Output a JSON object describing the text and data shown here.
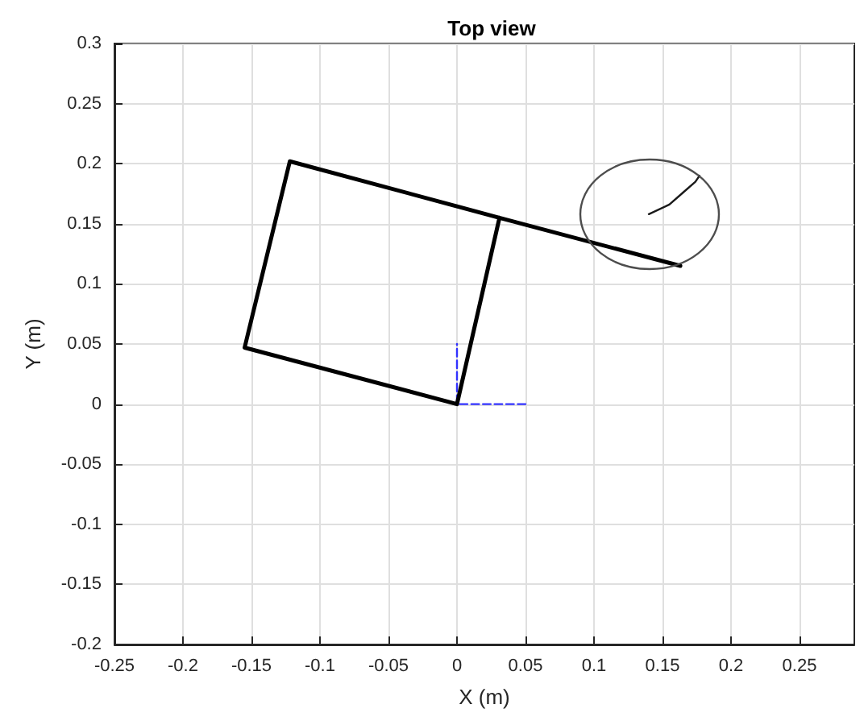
{
  "chart_data": {
    "type": "line",
    "title": "Top view",
    "xlabel": "X (m)",
    "ylabel": "Y (m)",
    "xlim": [
      -0.25,
      0.29
    ],
    "xticks": [
      -0.25,
      -0.2,
      -0.15,
      -0.1,
      -0.05,
      0,
      0.05,
      0.1,
      0.15,
      0.2,
      0.25
    ],
    "ylim": [
      -0.2,
      0.3
    ],
    "yticks": [
      -0.2,
      -0.15,
      -0.1,
      -0.05,
      0,
      0.05,
      0.1,
      0.15,
      0.2,
      0.25,
      0.3
    ],
    "grid": true,
    "marker": "none",
    "series": [
      {
        "color": "#000000",
        "x": [
          0.163,
          0.031,
          -0.122,
          -0.155,
          0,
          0.031
        ],
        "values": [
          0.115,
          0.155,
          0.202,
          0.047,
          0,
          0.155
        ]
      },
      {
        "color": "#1a1a1a",
        "x": [
          0.14,
          0.155,
          0.165,
          0.174,
          0.177
        ],
        "values": [
          0.158,
          0.166,
          0.176,
          0.185,
          0.19
        ]
      },
      {
        "color": "#3333ff",
        "line_style": "dashed",
        "x": [
          0.05,
          0,
          0
        ],
        "values": [
          0,
          0,
          0.05
        ]
      }
    ]
  }
}
